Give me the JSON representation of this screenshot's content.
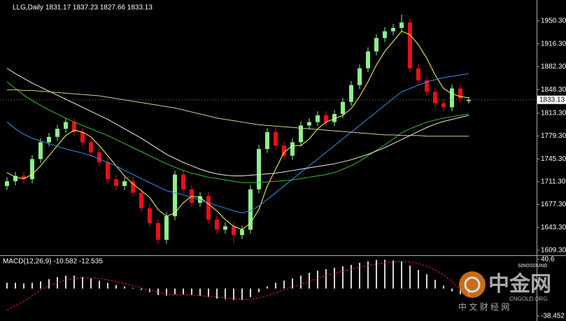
{
  "chart_data": [
    {
      "type": "candlestick",
      "title": "LLG,Daily",
      "ohlc_label": "1831.17 1837.23 1827.66 1833.13",
      "colors": {
        "up": "#8ef08e",
        "down": "#e8101a"
      },
      "open": [
        1705,
        1712,
        1720,
        1715,
        1745,
        1770,
        1778,
        1790,
        1800,
        1785,
        1770,
        1755,
        1740,
        1715,
        1705,
        1712,
        1695,
        1672,
        1650,
        1625,
        1660,
        1722,
        1700,
        1680,
        1690,
        1655,
        1640,
        1645,
        1632,
        1640,
        1700,
        1760,
        1785,
        1765,
        1750,
        1770,
        1795,
        1800,
        1810,
        1800,
        1812,
        1830,
        1855,
        1880,
        1905,
        1925,
        1935,
        1940,
        1948,
        1880,
        1862,
        1845,
        1828,
        1822,
        1850,
        1831.17
      ],
      "high": [
        1718,
        1726,
        1726,
        1751,
        1776,
        1784,
        1796,
        1806,
        1806,
        1791,
        1776,
        1761,
        1746,
        1721,
        1718,
        1718,
        1701,
        1678,
        1656,
        1666,
        1728,
        1728,
        1706,
        1696,
        1696,
        1661,
        1651,
        1651,
        1646,
        1706,
        1766,
        1791,
        1791,
        1771,
        1776,
        1801,
        1806,
        1816,
        1816,
        1818,
        1836,
        1861,
        1886,
        1911,
        1931,
        1941,
        1946,
        1960,
        1954,
        1886,
        1868,
        1851,
        1834,
        1856,
        1856,
        1837.23
      ],
      "low": [
        1699,
        1706,
        1709,
        1709,
        1739,
        1764,
        1772,
        1784,
        1779,
        1764,
        1749,
        1734,
        1709,
        1699,
        1699,
        1689,
        1666,
        1644,
        1619,
        1619,
        1654,
        1694,
        1674,
        1674,
        1649,
        1634,
        1634,
        1620,
        1626,
        1634,
        1694,
        1754,
        1759,
        1744,
        1744,
        1764,
        1789,
        1794,
        1794,
        1794,
        1806,
        1824,
        1849,
        1874,
        1899,
        1919,
        1929,
        1934,
        1874,
        1856,
        1839,
        1822,
        1816,
        1816,
        1829,
        1827.66
      ],
      "close": [
        1712,
        1720,
        1715,
        1745,
        1770,
        1778,
        1790,
        1800,
        1785,
        1770,
        1755,
        1740,
        1715,
        1705,
        1712,
        1695,
        1672,
        1650,
        1625,
        1660,
        1722,
        1700,
        1680,
        1690,
        1655,
        1640,
        1645,
        1632,
        1640,
        1700,
        1760,
        1785,
        1765,
        1750,
        1770,
        1795,
        1800,
        1810,
        1800,
        1812,
        1830,
        1855,
        1880,
        1905,
        1925,
        1935,
        1940,
        1948,
        1880,
        1862,
        1845,
        1828,
        1822,
        1850,
        1835,
        1833.13
      ],
      "series": [
        {
          "color": "#ffff66",
          "values": [
            1725,
            1718,
            1716,
            1722,
            1735,
            1750,
            1765,
            1780,
            1788,
            1785,
            1778,
            1765,
            1750,
            1735,
            1720,
            1708,
            1698,
            1688,
            1670,
            1660,
            1665,
            1680,
            1690,
            1688,
            1678,
            1668,
            1655,
            1645,
            1640,
            1650,
            1670,
            1705,
            1730,
            1755,
            1765,
            1765,
            1775,
            1790,
            1800,
            1805,
            1810,
            1820,
            1838,
            1860,
            1885,
            1905,
            1920,
            1935,
            1930,
            1915,
            1895,
            1870,
            1850,
            1842,
            1838,
            1836
          ]
        },
        {
          "color": "#3a8fe8",
          "values": [
            1800,
            1790,
            1782,
            1776,
            1772,
            1768,
            1764,
            1760,
            1757,
            1754,
            1750,
            1745,
            1740,
            1735,
            1728,
            1722,
            1716,
            1710,
            1704,
            1698,
            1695,
            1692,
            1688,
            1684,
            1680,
            1676,
            1672,
            1668,
            1665,
            1668,
            1675,
            1685,
            1695,
            1705,
            1715,
            1725,
            1735,
            1745,
            1755,
            1765,
            1775,
            1785,
            1795,
            1805,
            1815,
            1825,
            1835,
            1845,
            1850,
            1855,
            1860,
            1863,
            1866,
            1868,
            1870,
            1872
          ]
        },
        {
          "color": "#33c033",
          "values": [
            1860,
            1850,
            1840,
            1832,
            1825,
            1818,
            1812,
            1806,
            1800,
            1795,
            1790,
            1785,
            1780,
            1774,
            1768,
            1762,
            1756,
            1750,
            1744,
            1738,
            1733,
            1728,
            1724,
            1721,
            1718,
            1716,
            1714,
            1712,
            1710,
            1710,
            1710,
            1711,
            1712,
            1713,
            1714,
            1716,
            1718,
            1720,
            1722,
            1725,
            1730,
            1735,
            1742,
            1750,
            1758,
            1766,
            1775,
            1784,
            1790,
            1795,
            1800,
            1803,
            1806,
            1808,
            1810,
            1812
          ]
        },
        {
          "color": "#f0f0e0",
          "values": [
            1880,
            1872,
            1865,
            1858,
            1852,
            1846,
            1840,
            1834,
            1828,
            1822,
            1816,
            1810,
            1804,
            1797,
            1790,
            1783,
            1776,
            1768,
            1760,
            1752,
            1746,
            1740,
            1735,
            1730,
            1726,
            1723,
            1721,
            1720,
            1720,
            1721,
            1722,
            1723,
            1724,
            1726,
            1728,
            1730,
            1732,
            1734,
            1736,
            1738,
            1741,
            1744,
            1748,
            1752,
            1757,
            1762,
            1768,
            1774,
            1780,
            1786,
            1792,
            1797,
            1801,
            1804,
            1807,
            1810
          ]
        },
        {
          "color": "#d8c898",
          "values": [
            1848,
            1848,
            1847,
            1847,
            1846,
            1845,
            1844,
            1843,
            1842,
            1841,
            1840,
            1839,
            1837,
            1835,
            1833,
            1831,
            1829,
            1827,
            1825,
            1823,
            1821,
            1818,
            1815,
            1812,
            1809,
            1806,
            1804,
            1802,
            1800,
            1798,
            1796,
            1795,
            1794,
            1793,
            1792,
            1791,
            1790,
            1789,
            1788,
            1787,
            1786,
            1785,
            1784,
            1783,
            1782,
            1781,
            1781,
            1780,
            1780,
            1780,
            1779,
            1779,
            1779,
            1779,
            1779,
            1779
          ]
        }
      ],
      "ylim": [
        1602,
        1981.5
      ],
      "yticks": [
        {
          "value": 1609.3,
          "label": "1609.30"
        },
        {
          "value": 1643.3,
          "label": "1643.30"
        },
        {
          "value": 1677.3,
          "label": "1677.30"
        },
        {
          "value": 1711.3,
          "label": "1711.30"
        },
        {
          "value": 1745.3,
          "label": "1745.30"
        },
        {
          "value": 1779.3,
          "label": "1779.30"
        },
        {
          "value": 1813.3,
          "label": "1813.30"
        },
        {
          "value": 1848.3,
          "label": "1848.30"
        },
        {
          "value": 1882.3,
          "label": "1882.30"
        },
        {
          "value": 1916.3,
          "label": "1916.30"
        },
        {
          "value": 1950.3,
          "label": "1950.30"
        }
      ],
      "last_price": {
        "value": 1833.13,
        "label": "1833.13"
      }
    },
    {
      "type": "macd",
      "title": "MACD(12,26,9) -10.582 -12.535",
      "histogram": {
        "color": "#d8d8d8",
        "values": [
          8,
          8,
          7,
          8,
          10,
          13,
          16,
          18,
          18,
          16,
          14,
          11,
          8,
          5,
          3,
          1,
          -2,
          -5,
          -9,
          -10,
          -8,
          -8,
          -9,
          -10,
          -12,
          -14,
          -15,
          -16,
          -16,
          -12,
          -5,
          3,
          8,
          11,
          14,
          18,
          22,
          25,
          27,
          29,
          31,
          33,
          36,
          38,
          40,
          40,
          39,
          38,
          32,
          26,
          20,
          12,
          4,
          -4,
          -8,
          -10.582
        ]
      },
      "series": [
        {
          "color": "#e02020",
          "values": [
            -30,
            -24,
            -18,
            -10,
            -2,
            4,
            8,
            12,
            14,
            15,
            15,
            14,
            12,
            10,
            7,
            4,
            1,
            -2,
            -5,
            -8,
            -9,
            -9,
            -9,
            -10,
            -11,
            -12,
            -13,
            -14,
            -15,
            -15,
            -13,
            -10,
            -6,
            -2,
            2,
            6,
            10,
            14,
            18,
            21,
            24,
            27,
            30,
            32,
            34,
            36,
            37,
            38,
            37,
            35,
            31,
            26,
            19,
            10,
            -2,
            -12.535
          ]
        }
      ],
      "ylim": [
        -45.3,
        44.5
      ],
      "yticks": [
        40.6,
        -38.452
      ]
    }
  ],
  "watermark": {
    "brand": "中金网",
    "site": "CNGOLD.ORG",
    "tagline": "中 文 财 经 网",
    "partner": "SINOSOUND"
  }
}
